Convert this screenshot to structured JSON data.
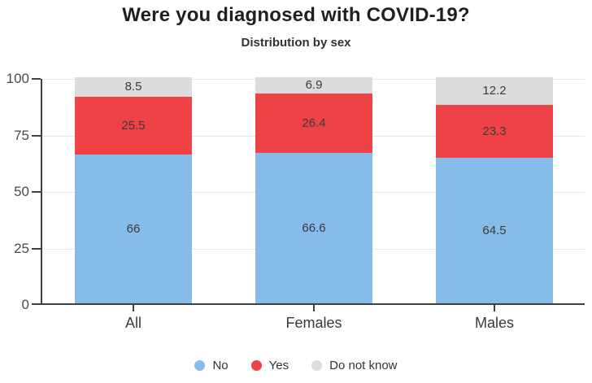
{
  "chart_data": {
    "type": "bar",
    "stacked": true,
    "title": "Were you diagnosed with COVID-19?",
    "subtitle": "Distribution by sex",
    "categories": [
      "All",
      "Females",
      "Males"
    ],
    "series": [
      {
        "name": "No",
        "color": "#85BCE9",
        "values": [
          66,
          66.6,
          64.5
        ]
      },
      {
        "name": "Yes",
        "color": "#EE4247",
        "values": [
          25.5,
          26.4,
          23.3
        ]
      },
      {
        "name": "Do not know",
        "color": "#DCDCDC",
        "values": [
          8.5,
          6.9,
          12.2
        ]
      }
    ],
    "ylim": [
      0,
      100
    ],
    "yticks": [
      0,
      25,
      50,
      75,
      100
    ],
    "grid": true,
    "legend_position": "bottom",
    "colors": {
      "axis": "#414141",
      "gridline": "#e7e7e7",
      "title_text": "#202020",
      "label_text": "#3b3b3b"
    }
  }
}
